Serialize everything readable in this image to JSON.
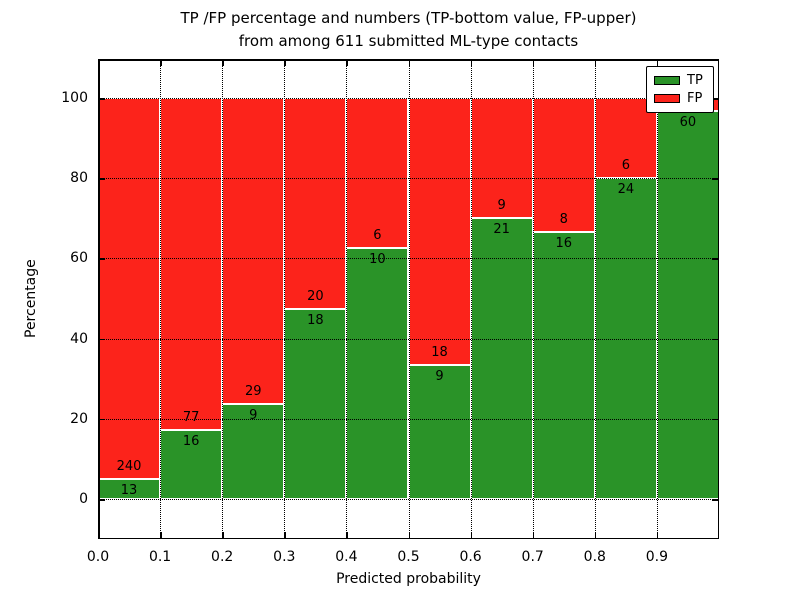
{
  "title": {
    "line1": "TP /FP percentage and numbers (TP-bottom value, FP-upper)",
    "line2": "from among 611 submitted ML-type contacts"
  },
  "axes": {
    "xlabel": "Predicted probability",
    "ylabel": "Percentage",
    "x_tick_labels": [
      "0.0",
      "0.1",
      "0.2",
      "0.3",
      "0.4",
      "0.5",
      "0.6",
      "0.7",
      "0.8",
      "0.9"
    ],
    "y_tick_labels": [
      "0",
      "20",
      "40",
      "60",
      "80",
      "100"
    ],
    "y_tick_values": [
      0,
      20,
      40,
      60,
      80,
      100
    ],
    "xlim": [
      0.0,
      1.0
    ],
    "ylim": [
      -10,
      110
    ]
  },
  "legend": {
    "position": "upper right",
    "items": [
      {
        "label": "TP",
        "color": "#2a9328"
      },
      {
        "label": "FP",
        "color": "#fc231b"
      }
    ]
  },
  "colors": {
    "tp_green": "#2a9328",
    "fp_red": "#fc231b",
    "bar_edge": "#ffffff",
    "grid": "#000000",
    "text": "#000000",
    "background": "#ffffff"
  },
  "chart_data": {
    "type": "bar",
    "stacked": true,
    "title": "TP /FP percentage and numbers (TP-bottom value, FP-upper) from among 611 submitted ML-type contacts",
    "xlabel": "Predicted probability",
    "ylabel": "Percentage",
    "categories": [
      "0.0-0.1",
      "0.1-0.2",
      "0.2-0.3",
      "0.3-0.4",
      "0.4-0.5",
      "0.5-0.6",
      "0.6-0.7",
      "0.7-0.8",
      "0.8-0.9",
      "0.9-1.0"
    ],
    "series": [
      {
        "name": "TP",
        "counts": [
          13,
          16,
          9,
          18,
          10,
          9,
          21,
          16,
          24,
          60
        ],
        "percent": [
          5.1,
          17.2,
          23.7,
          47.4,
          62.5,
          33.3,
          70.0,
          66.7,
          80.0,
          96.8
        ]
      },
      {
        "name": "FP",
        "counts": [
          240,
          77,
          29,
          20,
          6,
          18,
          9,
          8,
          6,
          null
        ],
        "percent": [
          94.9,
          82.8,
          76.3,
          52.6,
          37.5,
          66.7,
          30.0,
          33.3,
          20.0,
          3.2
        ]
      }
    ],
    "bar_labels": {
      "tp": [
        "13",
        "16",
        "9",
        "18",
        "10",
        "9",
        "21",
        "16",
        "24",
        "60"
      ],
      "fp": [
        "240",
        "77",
        "29",
        "20",
        "6",
        "18",
        "9",
        "8",
        "6",
        ""
      ]
    },
    "ylim": [
      -10,
      110
    ],
    "grid": true,
    "legend_position": "upper right"
  }
}
